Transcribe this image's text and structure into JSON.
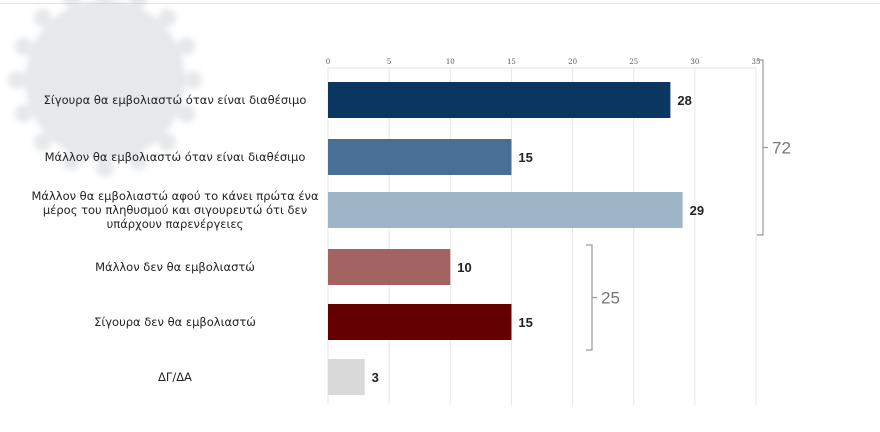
{
  "chart_data": {
    "type": "bar",
    "orientation": "horizontal",
    "categories": [
      [
        "Σίγουρα θα εμβολιαστώ όταν είναι διαθέσιμο"
      ],
      [
        "Μάλλον θα εμβολιαστώ όταν είναι διαθέσιμο"
      ],
      [
        "Μάλλον θα εμβολιαστώ αφού το κάνει πρώτα ένα",
        "μέρος του πληθυσμού και σιγουρευτώ ότι δεν",
        "υπάρχουν παρενέργειες"
      ],
      [
        "Μάλλον δεν θα εμβολιαστώ"
      ],
      [
        "Σίγουρα δεν θα εμβολιαστώ"
      ],
      [
        "ΔΓ/ΔΑ"
      ]
    ],
    "values": [
      28,
      15,
      29,
      10,
      15,
      3
    ],
    "colors": [
      "#0b3660",
      "#4a6f94",
      "#9fb4c6",
      "#a36363",
      "#650000",
      "#d9d9d9"
    ],
    "xlim": [
      0,
      35
    ],
    "xticks": [
      0,
      5,
      10,
      15,
      20,
      25,
      30,
      35
    ],
    "grid": true,
    "group_totals": [
      {
        "label": "72",
        "from": 0,
        "to": 2
      },
      {
        "label": "25",
        "from": 3,
        "to": 4
      }
    ]
  },
  "background": {
    "watermark": "coronavirus-image"
  }
}
